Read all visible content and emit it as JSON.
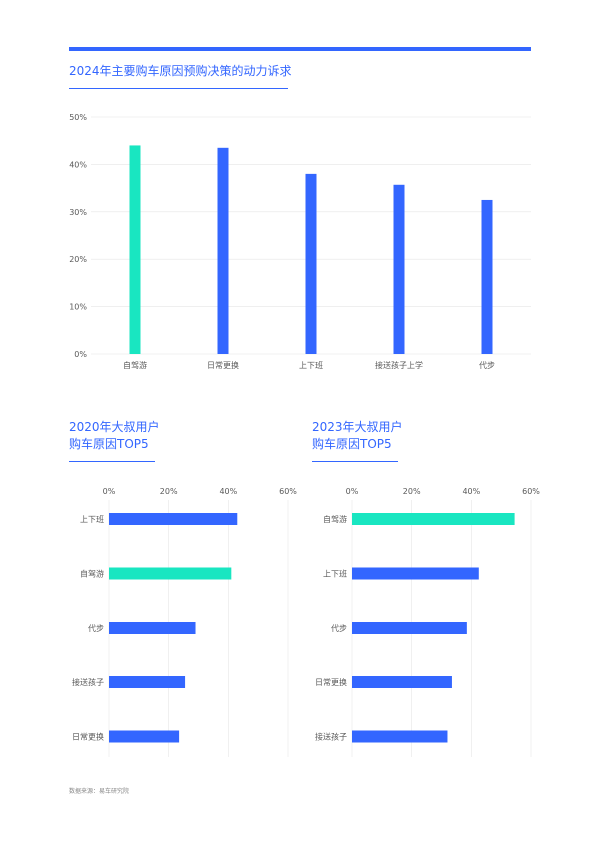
{
  "top_title": "2024年主要购车原因预购决策的动力诉求",
  "left_title": [
    "2020年大叔用户",
    "购车原因TOP5"
  ],
  "right_title": [
    "2023年大叔用户",
    "购车原因TOP5"
  ],
  "source": "数据来源：易车研究院",
  "colors": {
    "primary": "#3366ff",
    "highlight": "#19e6c1",
    "grid": "#e6e6e6",
    "text": "#595959"
  },
  "chart_data": [
    {
      "type": "bar",
      "orientation": "vertical",
      "title": "2024年主要购车原因预购决策的动力诉求",
      "categories": [
        "自驾游",
        "日常更换",
        "上下班",
        "接送孩子上学",
        "代步"
      ],
      "values": [
        44,
        43.5,
        38,
        35.7,
        32.5
      ],
      "highlight_index": 0,
      "ylim": [
        0,
        50
      ],
      "yticks": [
        0,
        10,
        20,
        30,
        40,
        50
      ],
      "tick_format": "%",
      "grid": true
    },
    {
      "type": "bar",
      "orientation": "horizontal",
      "title": "2020年大叔用户 购车原因TOP5",
      "categories": [
        "上下班",
        "自驾游",
        "代步",
        "接送孩子",
        "日常更换"
      ],
      "values": [
        43,
        41,
        29,
        25.5,
        23.5
      ],
      "highlight_index": 1,
      "xlim": [
        0,
        60
      ],
      "xticks": [
        0,
        20,
        40,
        60
      ],
      "tick_format": "%",
      "grid": true
    },
    {
      "type": "bar",
      "orientation": "horizontal",
      "title": "2023年大叔用户 购车原因TOP5",
      "categories": [
        "自驾游",
        "上下班",
        "代步",
        "日常更换",
        "接送孩子"
      ],
      "values": [
        54.5,
        42.5,
        38.5,
        33.5,
        32
      ],
      "highlight_index": 0,
      "xlim": [
        0,
        60
      ],
      "xticks": [
        0,
        20,
        40,
        60
      ],
      "tick_format": "%",
      "grid": true
    }
  ]
}
